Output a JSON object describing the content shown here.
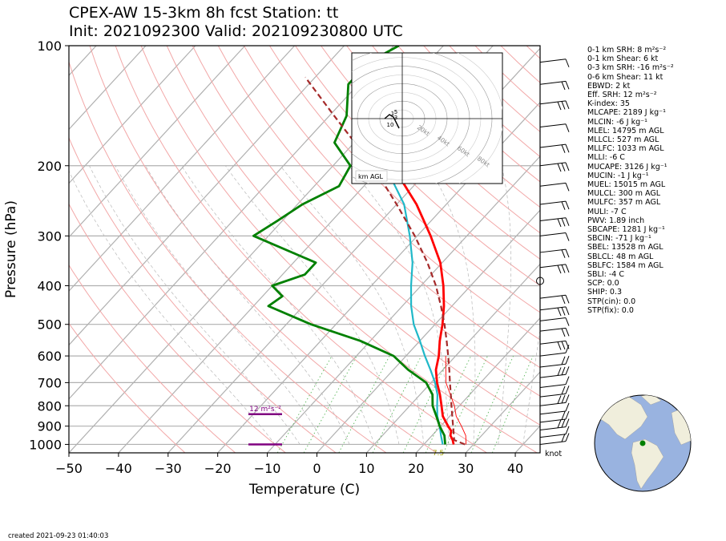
{
  "header": {
    "title_line1": "CPEX-AW 15-3km  8h fcst  Station: tt",
    "title_line2": "Init: 2021092300  Valid: 202109230800 UTC"
  },
  "footer": {
    "created": "created 2021-09-23 01:40:03"
  },
  "params": [
    "0-1 km SRH: 8 m²s⁻²",
    "0-1 km Shear: 6 kt",
    "0-3 km SRH: -16 m²s⁻²",
    "0-6 km Shear: 11 kt",
    "EBWD: 2 kt",
    "Eff. SRH: 12 m²s⁻²",
    "K-index: 35",
    "MLCAPE: 2189 J kg⁻¹",
    "MLCIN: -6 J kg⁻¹",
    "MLEL: 14795 m AGL",
    "MLLCL: 527 m AGL",
    "MLLFC: 1033 m AGL",
    "MLLI: -6 C",
    "MUCAPE: 3126 J kg⁻¹",
    "MUCIN: -1 J kg⁻¹",
    "MUEL: 15015 m AGL",
    "MULCL: 300 m AGL",
    "MULFC: 357 m AGL",
    "MULI: -7 C",
    "PWV: 1.89 inch",
    "SBCAPE: 1281 J kg⁻¹",
    "SBCIN: -71 J kg⁻¹",
    "SBEL: 13528 m AGL",
    "SBLCL: 48 m AGL",
    "SBLFC: 1584 m AGL",
    "SBLI: -4 C",
    "SCP: 0.0",
    "SHIP: 0.3",
    "STP(cin): 0.0",
    "STP(fix): 0.0"
  ],
  "chart_data": {
    "type": "line",
    "xlabel": "Temperature (C)",
    "ylabel": "Pressure (hPa)",
    "xlim": [
      -50,
      45
    ],
    "ylim": [
      1050,
      100
    ],
    "y_scale": "log",
    "x_ticks": [
      -50,
      -40,
      -30,
      -20,
      -10,
      0,
      10,
      20,
      30,
      40
    ],
    "y_ticks": [
      100,
      200,
      300,
      400,
      500,
      600,
      700,
      800,
      900,
      1000
    ],
    "skew": true,
    "series": [
      {
        "role": "temperature",
        "color": "#ff0000",
        "p": [
          1000,
          975,
          950,
          925,
          900,
          850,
          800,
          750,
          700,
          650,
          600,
          550,
          500,
          450,
          400,
          350,
          300,
          250,
          200,
          175
        ],
        "t": [
          26.0,
          25.0,
          23.7,
          23.0,
          21.5,
          18.6,
          16.4,
          14.0,
          11.2,
          8.6,
          6.6,
          4.0,
          1.5,
          -1.6,
          -5.5,
          -10.4,
          -17.3,
          -26.0,
          -38.0,
          -45.0
        ]
      },
      {
        "role": "virtual-temperature",
        "color": "#ff0000",
        "p": [
          1000,
          950,
          900,
          850,
          800,
          700,
          600
        ],
        "t": [
          28.5,
          26.8,
          24.2,
          21.3,
          19.0,
          13.0,
          8.0
        ]
      },
      {
        "role": "wet-bulb",
        "color": "#20b8c8",
        "p": [
          1000,
          950,
          900,
          850,
          800,
          750,
          700,
          650,
          600,
          550,
          500,
          450,
          400,
          350,
          300,
          250,
          200,
          175
        ],
        "t": [
          23.8,
          21.8,
          19.8,
          17.5,
          15.5,
          13.5,
          10.8,
          7.5,
          3.8,
          0.0,
          -4.3,
          -8.2,
          -12.0,
          -16.0,
          -21.5,
          -28.5,
          -39.5,
          -46.5
        ]
      },
      {
        "role": "dewpoint",
        "color": "#008000",
        "p": [
          1000,
          950,
          900,
          850,
          800,
          750,
          700,
          650,
          600,
          550,
          500,
          450,
          425,
          400,
          375,
          350,
          300,
          275,
          250,
          225,
          200,
          175,
          150,
          125,
          110,
          100
        ],
        "t": [
          24.3,
          22.5,
          19.8,
          17.3,
          14.6,
          12.5,
          9.0,
          3.0,
          -2.5,
          -12.0,
          -25.0,
          -37.0,
          -36.0,
          -40.0,
          -35.5,
          -35.5,
          -53.0,
          -51.0,
          -49.0,
          -45.0,
          -46.5,
          -54.0,
          -56.5,
          -62.0,
          -62.0,
          -59.0
        ]
      },
      {
        "role": "parcel",
        "color": "#a52a2a",
        "p": [
          1000,
          975,
          950,
          900,
          850,
          800,
          750,
          700,
          650,
          600,
          550,
          500,
          450,
          400,
          350,
          300,
          250,
          200,
          150,
          120
        ],
        "t": [
          28.3,
          25.3,
          24.4,
          22.5,
          20.5,
          18.4,
          16.2,
          13.8,
          11.3,
          8.5,
          5.4,
          1.9,
          -2.2,
          -7.0,
          -13.0,
          -20.5,
          -30.0,
          -42.0,
          -59.0,
          -72.0
        ]
      }
    ],
    "effective_inflow_layer": {
      "label": "12 m²s⁻²",
      "p_bottom": 1000,
      "p_top": 840
    },
    "lcl_label": "7.5",
    "wind_units": "knot",
    "hodograph": {
      "label": "km AGL",
      "ring_labels": [
        "20kt",
        "40kt",
        "60kt",
        "80kt"
      ],
      "height_labels": [
        "1",
        "3",
        "5",
        "10"
      ]
    },
    "globe_marker": "station location"
  }
}
